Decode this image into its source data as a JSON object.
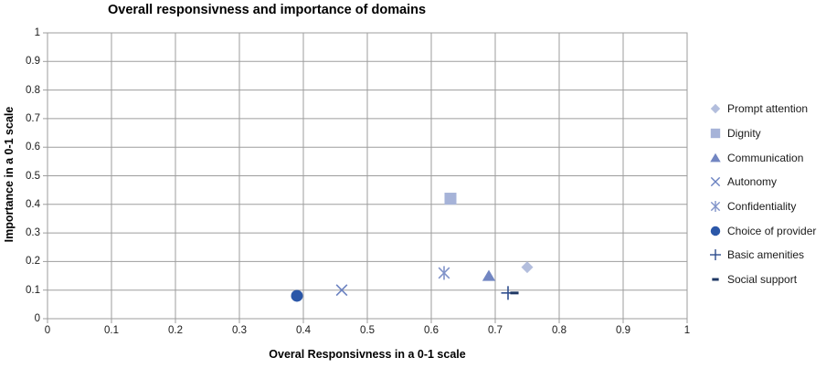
{
  "chart_data": {
    "type": "scatter",
    "title": "Overall responsivness and importance of domains",
    "xlabel": "Overal Responsivness in a 0-1 scale",
    "ylabel": "Importance in a 0-1 scale",
    "xlim": [
      0,
      1
    ],
    "ylim": [
      0,
      1
    ],
    "xticks": [
      "0",
      "0.1",
      "0.2",
      "0.3",
      "0.4",
      "0.5",
      "0.6",
      "0.7",
      "0.8",
      "0.9",
      "1"
    ],
    "yticks": [
      "0",
      "0.1",
      "0.2",
      "0.3",
      "0.4",
      "0.5",
      "0.6",
      "0.7",
      "0.8",
      "0.9",
      "1"
    ],
    "grid": true,
    "legend_position": "right",
    "series": [
      {
        "name": "Prompt attention",
        "marker": "diamond",
        "color": "#b3bedd",
        "points": [
          [
            0.75,
            0.18
          ]
        ]
      },
      {
        "name": "Dignity",
        "marker": "square",
        "color": "#a6b3d8",
        "points": [
          [
            0.63,
            0.42
          ]
        ]
      },
      {
        "name": "Communication",
        "marker": "triangle",
        "color": "#7286c2",
        "points": [
          [
            0.69,
            0.15
          ]
        ]
      },
      {
        "name": "Autonomy",
        "marker": "x",
        "color": "#6b82c1",
        "points": [
          [
            0.46,
            0.1
          ]
        ]
      },
      {
        "name": "Confidentiality",
        "marker": "x-star",
        "color": "#8093c9",
        "points": [
          [
            0.62,
            0.16
          ]
        ]
      },
      {
        "name": "Choice of provider",
        "marker": "circle",
        "color": "#2b57a8",
        "points": [
          [
            0.39,
            0.08
          ]
        ]
      },
      {
        "name": "Basic amenities",
        "marker": "plus",
        "color": "#2e4d8d",
        "points": [
          [
            0.72,
            0.09
          ]
        ]
      },
      {
        "name": "Social support",
        "marker": "dash",
        "color": "#1f3864",
        "points": [
          [
            0.73,
            0.09
          ]
        ]
      }
    ],
    "colors": {
      "gridline": "#9d9d9d",
      "plot_border": "#9d9d9d",
      "axis_text": "#1a1a1a",
      "background": "#ffffff"
    }
  }
}
